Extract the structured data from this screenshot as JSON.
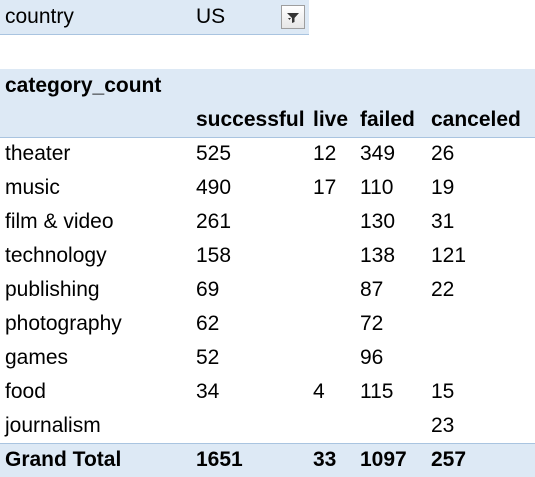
{
  "filter": {
    "label": "country",
    "value": "US",
    "button_icon": "filter-funnel-icon"
  },
  "pivot": {
    "title": "category_count",
    "columns": [
      "successful",
      "live",
      "failed",
      "canceled"
    ],
    "rows": [
      {
        "category": "theater",
        "successful": "525",
        "live": "12",
        "failed": "349",
        "canceled": "26"
      },
      {
        "category": "music",
        "successful": "490",
        "live": "17",
        "failed": "110",
        "canceled": "19"
      },
      {
        "category": "film & video",
        "successful": "261",
        "live": "",
        "failed": "130",
        "canceled": "31"
      },
      {
        "category": "technology",
        "successful": "158",
        "live": "",
        "failed": "138",
        "canceled": "121"
      },
      {
        "category": "publishing",
        "successful": "69",
        "live": "",
        "failed": "87",
        "canceled": "22"
      },
      {
        "category": "photography",
        "successful": "62",
        "live": "",
        "failed": "72",
        "canceled": ""
      },
      {
        "category": "games",
        "successful": "52",
        "live": "",
        "failed": "96",
        "canceled": ""
      },
      {
        "category": "food",
        "successful": "34",
        "live": "4",
        "failed": "115",
        "canceled": "15"
      },
      {
        "category": "journalism",
        "successful": "",
        "live": "",
        "failed": "",
        "canceled": "23"
      }
    ],
    "grand_total": {
      "label": "Grand Total",
      "successful": "1651",
      "live": "33",
      "failed": "1097",
      "canceled": "257"
    }
  },
  "colors": {
    "header_fill": "#dde9f5",
    "header_border": "#a9c4e0"
  }
}
